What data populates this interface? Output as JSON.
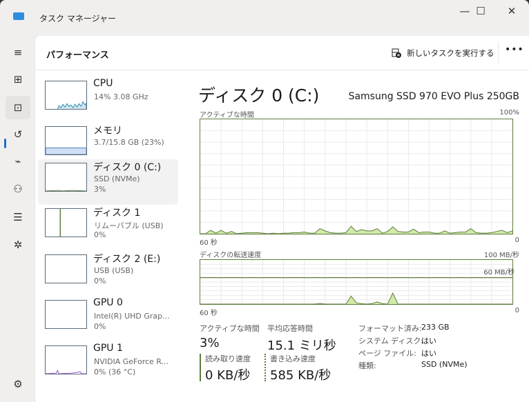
{
  "window": {
    "title": "タスク マネージャー",
    "minimize": "—",
    "maximize": "☐",
    "close": "✕"
  },
  "nav": {
    "items": [
      {
        "name": "menu-icon",
        "glyph": "≡"
      },
      {
        "name": "processes-icon",
        "glyph": "⊞"
      },
      {
        "name": "performance-icon",
        "glyph": "⊡"
      },
      {
        "name": "app-history-icon",
        "glyph": "↺"
      },
      {
        "name": "startup-apps-icon",
        "glyph": "⌁"
      },
      {
        "name": "users-icon",
        "glyph": "⚇"
      },
      {
        "name": "details-icon",
        "glyph": "☰"
      },
      {
        "name": "services-icon",
        "glyph": "✲"
      }
    ],
    "settings_glyph": "⚙",
    "selected": "performance"
  },
  "header": {
    "title": "パフォーマンス",
    "run_task": "新しいタスクを実行する",
    "more": "•••"
  },
  "devices": [
    {
      "name": "CPU",
      "sub1": "14%  3.08 GHz",
      "sub2": ""
    },
    {
      "name": "メモリ",
      "sub1": "3.7/15.8 GB (23%)",
      "sub2": ""
    },
    {
      "name": "ディスク 0 (C:)",
      "sub1": "SSD (NVMe)",
      "sub2": "3%"
    },
    {
      "name": "ディスク 1",
      "sub1": "リムーバブル (USB)",
      "sub2": "0%"
    },
    {
      "name": "ディスク 2 (E:)",
      "sub1": "USB (USB)",
      "sub2": "0%"
    },
    {
      "name": "GPU 0",
      "sub1": "Intel(R) UHD Grap...",
      "sub2": "0%"
    },
    {
      "name": "GPU 1",
      "sub1": "NVIDIA GeForce R...",
      "sub2": "0%  (36 °C)"
    }
  ],
  "colors": {
    "disk": "#5f7a3c",
    "disk_fill": "#d2eaa9",
    "cpu": "#2a8bb0",
    "memory": "#8bb3e0",
    "gpu": "#8a4fc8",
    "accent": "#1a6fd0"
  },
  "detail": {
    "title": "ディスク 0 (C:)",
    "model": "Samsung SSD 970 EVO Plus 250GB",
    "chart1_label": "アクティブな時間",
    "chart1_max": "100%",
    "chart1_xl": "60 秒",
    "chart1_xr": "0",
    "chart2_label": "ディスクの転送速度",
    "chart2_max": "100 MB/秒",
    "chart2_line_label": "60 MB/秒",
    "chart2_xl": "60 秒",
    "chart2_xr": "0",
    "stats": {
      "active_label": "アクティブな時間",
      "active": "3%",
      "resp_label": "平均応答時間",
      "resp": "15.1 ミリ秒",
      "read_label": "読み取り速度",
      "read": "0 KB/秒",
      "write_label": "書き込み速度",
      "write": "585 KB/秒"
    },
    "props": [
      {
        "k": "フォーマット済み:",
        "v": "233 GB"
      },
      {
        "k": "システム ディスク:",
        "v": "はい"
      },
      {
        "k": "ページ ファイル:",
        "v": "はい"
      },
      {
        "k": "種類:",
        "v": "SSD (NVMe)"
      }
    ]
  },
  "chart_data": [
    {
      "type": "area",
      "title": "アクティブな時間",
      "x_range": [
        "60 秒",
        "0"
      ],
      "ylim": [
        0,
        100
      ],
      "unit": "%",
      "grid": true,
      "values": [
        0,
        0,
        3,
        0.5,
        3,
        0.5,
        2,
        0,
        0.5,
        1,
        1,
        1,
        0.5,
        0,
        0.5,
        0,
        0.5,
        0.5,
        1,
        1,
        1.5,
        0.5,
        0.5,
        4.5,
        2.5,
        1,
        0.5,
        0.5,
        1,
        6.5,
        2,
        3.5,
        2.5,
        2.5,
        4.5,
        0.5,
        2,
        6,
        2,
        1.5,
        1.5,
        4,
        1,
        1.5,
        1.5,
        0.5,
        0.5,
        2.5,
        0.5,
        1,
        1.5,
        1.5,
        4.5,
        1,
        0.5,
        0.5,
        1,
        2,
        3,
        1,
        2.5
      ]
    },
    {
      "type": "area",
      "title": "ディスクの転送速度",
      "x_range": [
        "60 秒",
        "0"
      ],
      "ylim": [
        0,
        100
      ],
      "unit": "MB/秒",
      "grid": true,
      "reference_line": 60,
      "values": [
        0,
        0,
        0,
        0,
        0,
        0,
        0,
        0,
        0,
        0,
        0,
        0,
        0,
        0,
        0,
        0,
        0,
        0,
        0,
        0,
        0,
        0,
        0,
        1.5,
        0,
        0,
        0,
        0,
        0,
        18,
        3,
        1,
        0,
        1,
        5,
        1,
        0,
        25,
        0,
        0,
        0,
        0,
        0,
        0,
        0,
        0,
        0,
        0,
        0,
        0,
        0,
        0,
        0,
        0,
        0,
        0,
        0,
        0,
        0,
        0,
        0
      ]
    }
  ]
}
